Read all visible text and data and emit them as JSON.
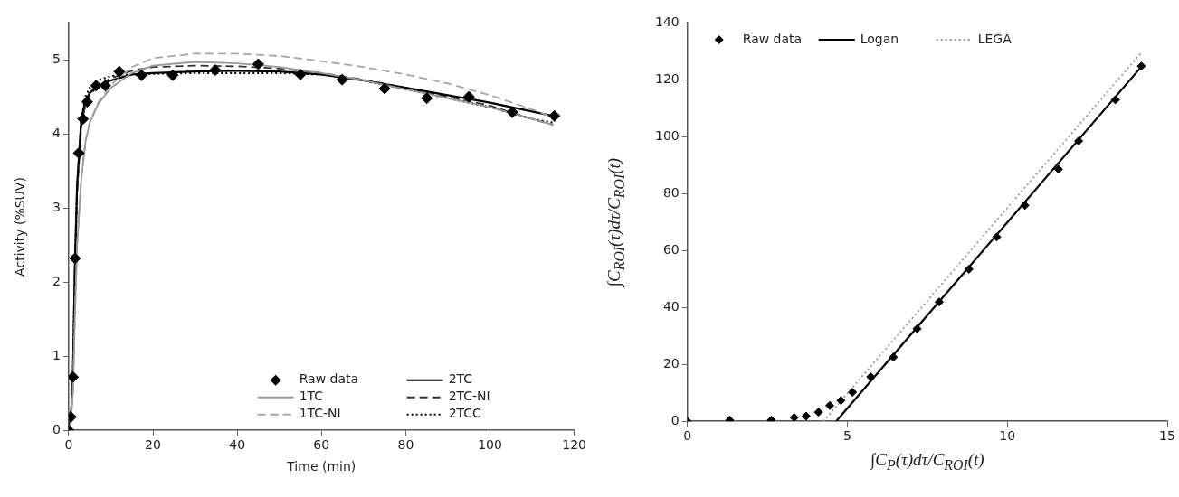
{
  "chart_data": [
    {
      "type": "line",
      "xlabel": "Time (min)",
      "ylabel": "Activity (%SUV)",
      "xlim": [
        0,
        120
      ],
      "xticks": [
        0,
        20,
        40,
        60,
        80,
        100,
        120
      ],
      "ylim": [
        0,
        5.5
      ],
      "yticks": [
        0,
        1,
        2,
        3,
        4,
        5
      ],
      "grid": false,
      "legend": "bottom right",
      "series": [
        {
          "name": "Raw data",
          "type": "scatter",
          "marker": "diamond",
          "color": "#000000",
          "x": [
            0,
            0.5,
            1,
            1.5,
            2.4,
            3.4,
            4.4,
            6.5,
            8.7,
            12,
            17.3,
            24.7,
            34.8,
            45,
            55,
            64.9,
            75,
            85,
            95,
            105.3,
            115.3
          ],
          "values": [
            0,
            0.18,
            0.72,
            2.32,
            3.74,
            4.2,
            4.43,
            4.65,
            4.65,
            4.84,
            4.79,
            4.79,
            4.86,
            4.94,
            4.8,
            4.73,
            4.61,
            4.48,
            4.5,
            4.29,
            4.24
          ]
        },
        {
          "name": "1TC",
          "marker": "none",
          "line_style": "solid",
          "color": "#999999",
          "x": [
            0,
            0.5,
            1,
            1.5,
            2,
            3,
            4,
            5,
            7,
            10,
            15,
            20,
            30,
            40,
            50,
            60,
            70,
            80,
            90,
            100,
            110,
            115
          ],
          "values": [
            0,
            0.1,
            0.5,
            1.6,
            2.5,
            3.4,
            3.9,
            4.15,
            4.4,
            4.62,
            4.82,
            4.92,
            4.97,
            4.95,
            4.9,
            4.82,
            4.72,
            4.6,
            4.48,
            4.36,
            4.2,
            4.12
          ]
        },
        {
          "name": "1TC-NI",
          "marker": "none",
          "line_style": "dashed",
          "color": "#a6a6a6",
          "x": [
            0,
            0.5,
            1,
            1.5,
            2,
            3,
            4,
            5,
            7,
            10,
            15,
            20,
            30,
            40,
            50,
            60,
            70,
            80,
            90,
            100,
            110,
            115
          ],
          "values": [
            0,
            0.1,
            0.5,
            1.6,
            2.5,
            3.4,
            3.9,
            4.15,
            4.42,
            4.66,
            4.9,
            5.02,
            5.08,
            5.08,
            5.05,
            4.98,
            4.9,
            4.8,
            4.68,
            4.52,
            4.33,
            4.22
          ]
        },
        {
          "name": "2TC",
          "marker": "none",
          "line_style": "solid",
          "color": "#000000",
          "x": [
            0,
            0.5,
            1,
            1.5,
            2,
            3,
            4,
            5,
            7,
            10,
            15,
            20,
            30,
            40,
            50,
            60,
            70,
            80,
            90,
            100,
            110,
            115
          ],
          "values": [
            0,
            0.15,
            0.7,
            2.3,
            3.3,
            4.2,
            4.45,
            4.55,
            4.65,
            4.72,
            4.8,
            4.82,
            4.84,
            4.85,
            4.84,
            4.8,
            4.72,
            4.62,
            4.52,
            4.42,
            4.3,
            4.24
          ]
        },
        {
          "name": "2TC-NI",
          "marker": "none",
          "line_style": "dashed",
          "color": "#333333",
          "x": [
            0,
            0.5,
            1,
            1.5,
            2,
            3,
            4,
            5,
            7,
            10,
            15,
            20,
            30,
            40,
            50,
            60,
            70,
            80,
            90,
            100,
            110,
            115
          ],
          "values": [
            0,
            0.15,
            0.7,
            2.2,
            3.2,
            4.1,
            4.4,
            4.52,
            4.65,
            4.75,
            4.85,
            4.9,
            4.92,
            4.91,
            4.88,
            4.82,
            4.73,
            4.62,
            4.5,
            4.38,
            4.2,
            4.12
          ]
        },
        {
          "name": "2TCC",
          "marker": "none",
          "line_style": "dotted",
          "color": "#000000",
          "x": [
            0,
            0.5,
            1,
            1.5,
            2,
            3,
            4,
            5,
            7,
            10,
            15,
            20,
            30,
            40,
            50,
            60,
            70,
            80,
            90,
            100,
            110,
            115
          ],
          "values": [
            0,
            0.15,
            0.7,
            2.3,
            3.3,
            4.2,
            4.5,
            4.62,
            4.72,
            4.78,
            4.8,
            4.81,
            4.82,
            4.82,
            4.82,
            4.8,
            4.72,
            4.6,
            4.48,
            4.36,
            4.2,
            4.15
          ]
        }
      ]
    },
    {
      "type": "line",
      "xlabel": "∫C$_{P}$(τ)dτ/C$_{ROI}$(t)",
      "ylabel": "∫C$_{ROI}$(τ)dτ/C$_{ROI}$(t)",
      "xlim": [
        0,
        15
      ],
      "xticks": [
        0,
        5,
        10,
        15
      ],
      "ylim": [
        0,
        140
      ],
      "yticks": [
        0,
        20,
        40,
        60,
        80,
        100,
        120,
        140
      ],
      "grid": false,
      "legend": "top left",
      "series": [
        {
          "name": "Raw data",
          "type": "scatter",
          "marker": "diamond",
          "color": "#000000",
          "x": [
            0,
            1.32,
            2.62,
            3.34,
            3.71,
            4.1,
            4.45,
            4.8,
            5.16,
            5.73,
            6.44,
            7.18,
            7.87,
            8.8,
            9.67,
            10.55,
            11.6,
            12.23,
            13.38,
            14.19
          ],
          "values": [
            0,
            0.4,
            0.4,
            1.3,
            1.8,
            3.2,
            5.5,
            7.3,
            10.2,
            15.6,
            22.5,
            32.5,
            41.9,
            53.4,
            64.7,
            75.8,
            88.5,
            98.4,
            112.9,
            124.7
          ]
        },
        {
          "name": "Logan",
          "marker": "none",
          "line_style": "solid",
          "color": "#000000",
          "x": [
            4.65,
            14.19
          ],
          "values": [
            0,
            124.5
          ]
        },
        {
          "name": "LEGA",
          "marker": "none",
          "line_style": "dotted",
          "color": "#999999",
          "x": [
            4.25,
            14.2
          ],
          "values": [
            0,
            129.6
          ]
        }
      ]
    }
  ]
}
